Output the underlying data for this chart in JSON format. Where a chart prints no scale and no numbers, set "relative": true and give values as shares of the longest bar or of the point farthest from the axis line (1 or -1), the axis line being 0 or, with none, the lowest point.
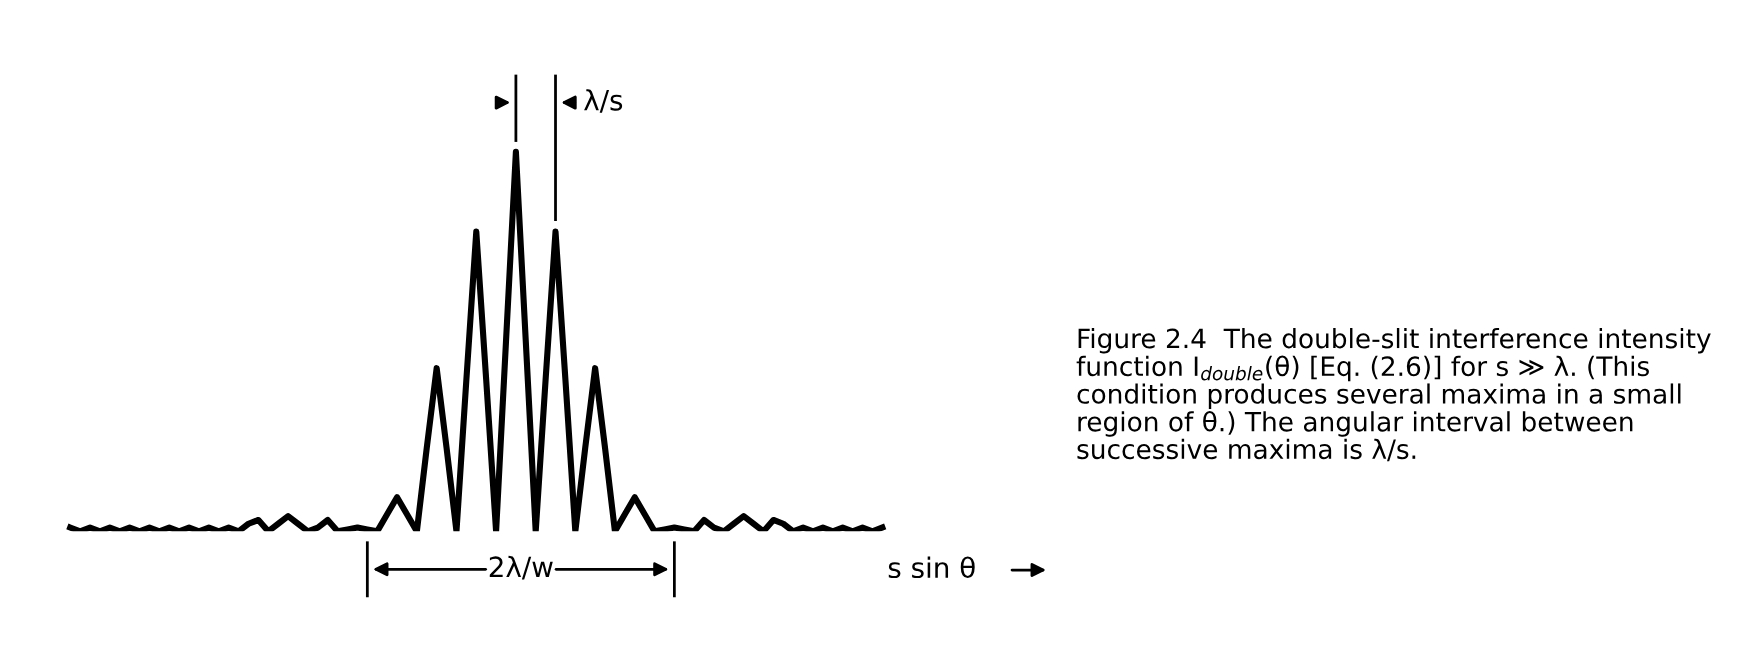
{
  "chart_data": {
    "type": "line",
    "relative": true,
    "xlabel": "s sin θ",
    "line_style": "solid",
    "marker": "none",
    "categories": [
      null,
      null,
      null,
      null,
      null,
      null,
      null,
      null,
      null,
      null,
      null,
      null,
      null,
      null,
      null,
      null,
      null,
      null,
      null,
      null,
      null,
      null,
      null,
      null,
      null,
      null,
      null,
      null,
      null,
      null,
      null,
      null,
      null,
      null,
      null,
      null,
      null,
      null,
      null,
      null,
      null,
      null,
      null,
      null,
      null,
      null,
      null,
      null,
      null,
      null,
      null,
      null,
      null,
      null,
      null,
      null,
      null,
      null,
      null,
      null,
      null,
      null,
      null,
      null,
      null,
      null,
      null,
      null,
      null,
      null,
      null,
      null,
      null,
      null,
      null,
      null,
      null,
      null,
      null,
      null,
      null,
      null,
      null
    ],
    "series": [
      {
        "color": "#000000",
        "values": [
          0.01,
          0.0,
          0.01,
          0.0,
          0.01,
          0.0,
          0.01,
          0.0,
          0.01,
          0.0,
          0.01,
          0.0,
          0.01,
          0.0,
          0.01,
          0.0,
          0.01,
          0.0,
          0.02,
          0.03,
          0.0,
          0.02,
          0.04,
          0.02,
          0.0,
          0.01,
          0.03,
          0.0,
          0.005,
          0.01,
          0.005,
          0.0,
          0.045,
          0.09,
          0.045,
          0.0,
          0.22,
          0.43,
          0.22,
          0.0,
          0.4,
          0.79,
          0.4,
          0.0,
          0.5,
          1.0,
          0.5,
          0.0,
          0.4,
          0.79,
          0.4,
          0.0,
          0.22,
          0.43,
          0.22,
          0.0,
          0.045,
          0.09,
          0.045,
          0.0,
          0.005,
          0.01,
          0.005,
          0.0,
          0.03,
          0.01,
          0.0,
          0.02,
          0.04,
          0.02,
          0.0,
          0.03,
          0.02,
          0.0,
          0.01,
          0.0,
          0.01,
          0.0,
          0.01,
          0.0,
          0.01,
          0.0,
          0.01
        ]
      }
    ],
    "annotations": [
      "λ/s",
      "2λ/w",
      "Figure 2.4  The double-slit interference intensity function I$_{double}$(θ) [Eq. (2.6)] for s ≫ λ. (This condition produces several maxima in a small region of θ.) The angular interval between successive maxima is λ/s."
    ]
  }
}
